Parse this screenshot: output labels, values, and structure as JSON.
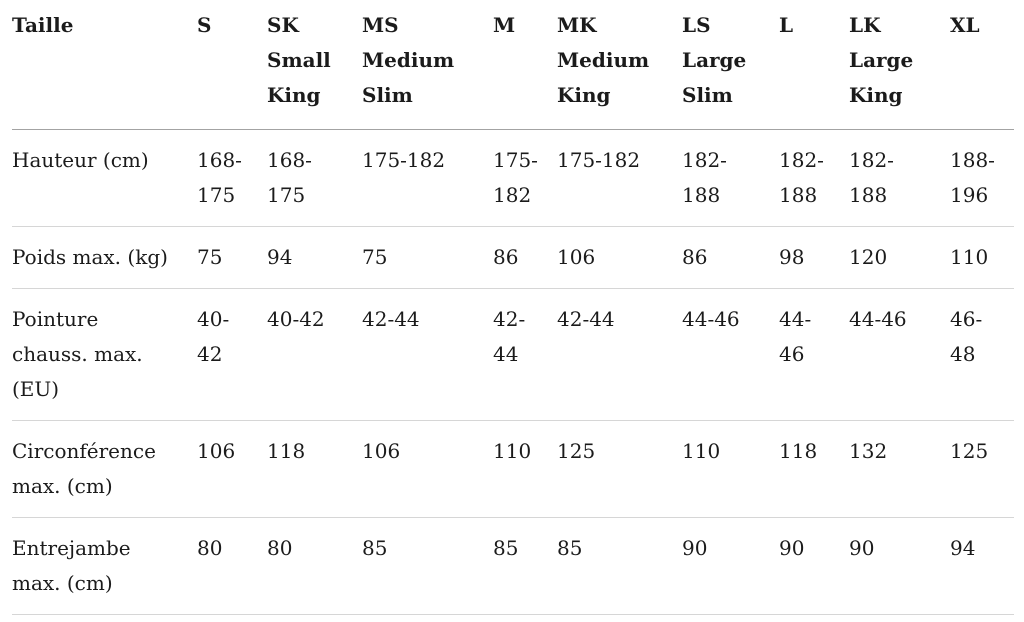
{
  "colors": {
    "background": "#ffffff",
    "text": "#1b1b1b",
    "header_divider": "#a3a3a3",
    "row_divider": "#d6d6d6"
  },
  "table": {
    "header": {
      "label_column_title": "Taille",
      "columns": [
        {
          "code": "S",
          "name": ""
        },
        {
          "code": "SK",
          "name": "Small King"
        },
        {
          "code": "MS",
          "name": "Medium Slim"
        },
        {
          "code": "M",
          "name": ""
        },
        {
          "code": "MK",
          "name": "Medium King"
        },
        {
          "code": "LS",
          "name": "Large Slim"
        },
        {
          "code": "L",
          "name": ""
        },
        {
          "code": "LK",
          "name": "Large King"
        },
        {
          "code": "XL",
          "name": ""
        }
      ]
    },
    "rows": [
      {
        "label": "Hauteur (cm)",
        "values": [
          "168-175",
          "168-175",
          "175-182",
          "175-182",
          "175-182",
          "182-188",
          "182-188",
          "182-188",
          "188-196"
        ]
      },
      {
        "label": "Poids max. (kg)",
        "values": [
          "75",
          "94",
          "75",
          "86",
          "106",
          "86",
          "98",
          "120",
          "110"
        ]
      },
      {
        "label": "Pointure chauss. max. (EU)",
        "values": [
          "40-42",
          "40-42",
          "42-44",
          "42-44",
          "42-44",
          "44-46",
          "44-46",
          "44-46",
          "46-48"
        ]
      },
      {
        "label": "Circonférence max. (cm)",
        "values": [
          "106",
          "118",
          "106",
          "110",
          "125",
          "110",
          "118",
          "132",
          "125"
        ]
      },
      {
        "label": "Entrejambe max. (cm)",
        "values": [
          "80",
          "80",
          "85",
          "85",
          "85",
          "90",
          "90",
          "90",
          "94"
        ]
      }
    ]
  }
}
